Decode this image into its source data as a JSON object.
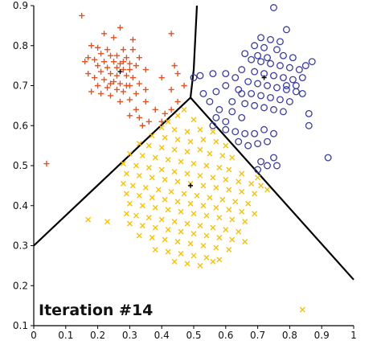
{
  "chart_data": {
    "type": "scatter",
    "title": "",
    "xlabel": "",
    "ylabel": "",
    "annotation": "Iteration #14",
    "xlim": [
      0,
      1
    ],
    "ylim": [
      0.1,
      0.9
    ],
    "xticks": [
      "0",
      "0.1",
      "0.2",
      "0.3",
      "0.4",
      "0.5",
      "0.6",
      "0.7",
      "0.8",
      "0.9",
      "1"
    ],
    "yticks": [
      "0.1",
      "0.2",
      "0.3",
      "0.4",
      "0.5",
      "0.6",
      "0.7",
      "0.8",
      "0.9"
    ],
    "grid": false,
    "legend": "none",
    "colors": {
      "red": "#e8501e",
      "blue": "#3a3d9c",
      "yellow": "#f4c20d",
      "boundary": "#000000"
    },
    "boundaries": [
      {
        "x": [
          0.49,
          0.5,
          0.51
        ],
        "y": [
          0.67,
          0.74,
          0.9
        ]
      },
      {
        "x": [
          0.49,
          0.0
        ],
        "y": [
          0.67,
          0.3
        ]
      },
      {
        "x": [
          0.49,
          1.0
        ],
        "y": [
          0.67,
          0.215
        ]
      }
    ],
    "series": [
      {
        "marker": "plus",
        "color": "red",
        "centroid": [
          0.27,
          0.735
        ],
        "points": [
          [
            0.15,
            0.875
          ],
          [
            0.27,
            0.845
          ],
          [
            0.43,
            0.83
          ],
          [
            0.22,
            0.83
          ],
          [
            0.25,
            0.82
          ],
          [
            0.31,
            0.815
          ],
          [
            0.18,
            0.8
          ],
          [
            0.2,
            0.795
          ],
          [
            0.23,
            0.79
          ],
          [
            0.28,
            0.79
          ],
          [
            0.31,
            0.79
          ],
          [
            0.21,
            0.78
          ],
          [
            0.24,
            0.775
          ],
          [
            0.26,
            0.775
          ],
          [
            0.29,
            0.77
          ],
          [
            0.17,
            0.77
          ],
          [
            0.19,
            0.765
          ],
          [
            0.22,
            0.76
          ],
          [
            0.25,
            0.76
          ],
          [
            0.27,
            0.755
          ],
          [
            0.3,
            0.755
          ],
          [
            0.32,
            0.75
          ],
          [
            0.2,
            0.75
          ],
          [
            0.23,
            0.745
          ],
          [
            0.26,
            0.745
          ],
          [
            0.28,
            0.74
          ],
          [
            0.3,
            0.74
          ],
          [
            0.21,
            0.735
          ],
          [
            0.24,
            0.73
          ],
          [
            0.26,
            0.725
          ],
          [
            0.29,
            0.725
          ],
          [
            0.31,
            0.72
          ],
          [
            0.19,
            0.72
          ],
          [
            0.22,
            0.715
          ],
          [
            0.25,
            0.71
          ],
          [
            0.27,
            0.705
          ],
          [
            0.3,
            0.7
          ],
          [
            0.33,
            0.705
          ],
          [
            0.2,
            0.7
          ],
          [
            0.23,
            0.695
          ],
          [
            0.26,
            0.69
          ],
          [
            0.28,
            0.685
          ],
          [
            0.32,
            0.68
          ],
          [
            0.18,
            0.685
          ],
          [
            0.21,
            0.68
          ],
          [
            0.24,
            0.675
          ],
          [
            0.35,
            0.69
          ],
          [
            0.4,
            0.72
          ],
          [
            0.44,
            0.75
          ],
          [
            0.45,
            0.73
          ],
          [
            0.47,
            0.7
          ],
          [
            0.43,
            0.69
          ],
          [
            0.3,
            0.665
          ],
          [
            0.27,
            0.66
          ],
          [
            0.35,
            0.66
          ],
          [
            0.38,
            0.64
          ],
          [
            0.32,
            0.64
          ],
          [
            0.41,
            0.63
          ],
          [
            0.3,
            0.625
          ],
          [
            0.33,
            0.62
          ],
          [
            0.36,
            0.61
          ],
          [
            0.34,
            0.6
          ],
          [
            0.4,
            0.61
          ],
          [
            0.43,
            0.64
          ],
          [
            0.45,
            0.66
          ],
          [
            0.29,
            0.7
          ],
          [
            0.24,
            0.705
          ],
          [
            0.17,
            0.73
          ],
          [
            0.33,
            0.77
          ],
          [
            0.35,
            0.74
          ],
          [
            0.16,
            0.76
          ],
          [
            0.28,
            0.76
          ],
          [
            0.04,
            0.505
          ]
        ]
      },
      {
        "marker": "circle",
        "color": "blue",
        "centroid": [
          0.72,
          0.72
        ],
        "points": [
          [
            0.75,
            0.895
          ],
          [
            0.79,
            0.84
          ],
          [
            0.71,
            0.82
          ],
          [
            0.74,
            0.815
          ],
          [
            0.77,
            0.81
          ],
          [
            0.69,
            0.8
          ],
          [
            0.72,
            0.795
          ],
          [
            0.76,
            0.79
          ],
          [
            0.66,
            0.78
          ],
          [
            0.7,
            0.775
          ],
          [
            0.73,
            0.77
          ],
          [
            0.78,
            0.775
          ],
          [
            0.81,
            0.77
          ],
          [
            0.68,
            0.765
          ],
          [
            0.71,
            0.76
          ],
          [
            0.74,
            0.755
          ],
          [
            0.77,
            0.75
          ],
          [
            0.8,
            0.745
          ],
          [
            0.83,
            0.74
          ],
          [
            0.65,
            0.74
          ],
          [
            0.69,
            0.735
          ],
          [
            0.72,
            0.73
          ],
          [
            0.75,
            0.725
          ],
          [
            0.78,
            0.72
          ],
          [
            0.81,
            0.715
          ],
          [
            0.84,
            0.72
          ],
          [
            0.67,
            0.71
          ],
          [
            0.7,
            0.705
          ],
          [
            0.73,
            0.7
          ],
          [
            0.76,
            0.695
          ],
          [
            0.79,
            0.69
          ],
          [
            0.82,
            0.685
          ],
          [
            0.64,
            0.69
          ],
          [
            0.68,
            0.68
          ],
          [
            0.71,
            0.675
          ],
          [
            0.74,
            0.67
          ],
          [
            0.77,
            0.665
          ],
          [
            0.8,
            0.66
          ],
          [
            0.62,
            0.66
          ],
          [
            0.66,
            0.655
          ],
          [
            0.69,
            0.65
          ],
          [
            0.72,
            0.645
          ],
          [
            0.75,
            0.64
          ],
          [
            0.78,
            0.635
          ],
          [
            0.57,
            0.685
          ],
          [
            0.6,
            0.7
          ],
          [
            0.56,
            0.73
          ],
          [
            0.52,
            0.725
          ],
          [
            0.5,
            0.72
          ],
          [
            0.53,
            0.68
          ],
          [
            0.55,
            0.66
          ],
          [
            0.58,
            0.64
          ],
          [
            0.62,
            0.635
          ],
          [
            0.65,
            0.62
          ],
          [
            0.6,
            0.61
          ],
          [
            0.57,
            0.62
          ],
          [
            0.56,
            0.6
          ],
          [
            0.6,
            0.59
          ],
          [
            0.63,
            0.585
          ],
          [
            0.66,
            0.58
          ],
          [
            0.69,
            0.58
          ],
          [
            0.72,
            0.59
          ],
          [
            0.75,
            0.58
          ],
          [
            0.73,
            0.56
          ],
          [
            0.7,
            0.555
          ],
          [
            0.67,
            0.55
          ],
          [
            0.64,
            0.56
          ],
          [
            0.75,
            0.52
          ],
          [
            0.73,
            0.5
          ],
          [
            0.71,
            0.51
          ],
          [
            0.7,
            0.49
          ],
          [
            0.76,
            0.5
          ],
          [
            0.86,
            0.6
          ],
          [
            0.92,
            0.52
          ],
          [
            0.86,
            0.63
          ],
          [
            0.84,
            0.68
          ],
          [
            0.82,
            0.7
          ],
          [
            0.85,
            0.75
          ],
          [
            0.87,
            0.76
          ],
          [
            0.79,
            0.7
          ],
          [
            0.6,
            0.73
          ],
          [
            0.63,
            0.72
          ],
          [
            0.65,
            0.68
          ]
        ]
      },
      {
        "marker": "x",
        "color": "yellow",
        "centroid": [
          0.49,
          0.45
        ],
        "points": [
          [
            0.47,
            0.64
          ],
          [
            0.45,
            0.625
          ],
          [
            0.42,
            0.61
          ],
          [
            0.5,
            0.615
          ],
          [
            0.4,
            0.595
          ],
          [
            0.44,
            0.59
          ],
          [
            0.48,
            0.585
          ],
          [
            0.52,
            0.59
          ],
          [
            0.56,
            0.585
          ],
          [
            0.37,
            0.575
          ],
          [
            0.41,
            0.57
          ],
          [
            0.45,
            0.565
          ],
          [
            0.49,
            0.56
          ],
          [
            0.53,
            0.565
          ],
          [
            0.57,
            0.56
          ],
          [
            0.6,
            0.55
          ],
          [
            0.33,
            0.555
          ],
          [
            0.36,
            0.55
          ],
          [
            0.4,
            0.545
          ],
          [
            0.44,
            0.54
          ],
          [
            0.48,
            0.535
          ],
          [
            0.52,
            0.54
          ],
          [
            0.55,
            0.53
          ],
          [
            0.59,
            0.525
          ],
          [
            0.62,
            0.52
          ],
          [
            0.3,
            0.53
          ],
          [
            0.34,
            0.525
          ],
          [
            0.38,
            0.52
          ],
          [
            0.42,
            0.515
          ],
          [
            0.46,
            0.51
          ],
          [
            0.5,
            0.505
          ],
          [
            0.54,
            0.5
          ],
          [
            0.58,
            0.495
          ],
          [
            0.61,
            0.49
          ],
          [
            0.65,
            0.48
          ],
          [
            0.28,
            0.505
          ],
          [
            0.32,
            0.5
          ],
          [
            0.36,
            0.495
          ],
          [
            0.4,
            0.49
          ],
          [
            0.44,
            0.485
          ],
          [
            0.48,
            0.48
          ],
          [
            0.52,
            0.475
          ],
          [
            0.56,
            0.47
          ],
          [
            0.6,
            0.465
          ],
          [
            0.64,
            0.46
          ],
          [
            0.68,
            0.455
          ],
          [
            0.29,
            0.48
          ],
          [
            0.33,
            0.475
          ],
          [
            0.37,
            0.47
          ],
          [
            0.41,
            0.465
          ],
          [
            0.45,
            0.46
          ],
          [
            0.49,
            0.455
          ],
          [
            0.53,
            0.45
          ],
          [
            0.57,
            0.445
          ],
          [
            0.61,
            0.44
          ],
          [
            0.65,
            0.435
          ],
          [
            0.69,
            0.43
          ],
          [
            0.28,
            0.455
          ],
          [
            0.31,
            0.45
          ],
          [
            0.35,
            0.445
          ],
          [
            0.39,
            0.44
          ],
          [
            0.43,
            0.435
          ],
          [
            0.47,
            0.43
          ],
          [
            0.51,
            0.425
          ],
          [
            0.55,
            0.42
          ],
          [
            0.59,
            0.415
          ],
          [
            0.63,
            0.41
          ],
          [
            0.67,
            0.405
          ],
          [
            0.29,
            0.43
          ],
          [
            0.33,
            0.425
          ],
          [
            0.37,
            0.42
          ],
          [
            0.41,
            0.415
          ],
          [
            0.45,
            0.41
          ],
          [
            0.49,
            0.405
          ],
          [
            0.53,
            0.4
          ],
          [
            0.57,
            0.395
          ],
          [
            0.61,
            0.39
          ],
          [
            0.65,
            0.385
          ],
          [
            0.3,
            0.405
          ],
          [
            0.34,
            0.4
          ],
          [
            0.38,
            0.395
          ],
          [
            0.42,
            0.39
          ],
          [
            0.46,
            0.385
          ],
          [
            0.5,
            0.38
          ],
          [
            0.54,
            0.375
          ],
          [
            0.58,
            0.37
          ],
          [
            0.62,
            0.365
          ],
          [
            0.66,
            0.36
          ],
          [
            0.29,
            0.38
          ],
          [
            0.32,
            0.375
          ],
          [
            0.36,
            0.37
          ],
          [
            0.4,
            0.365
          ],
          [
            0.44,
            0.36
          ],
          [
            0.48,
            0.355
          ],
          [
            0.52,
            0.35
          ],
          [
            0.56,
            0.345
          ],
          [
            0.6,
            0.34
          ],
          [
            0.64,
            0.335
          ],
          [
            0.3,
            0.355
          ],
          [
            0.34,
            0.35
          ],
          [
            0.38,
            0.345
          ],
          [
            0.42,
            0.34
          ],
          [
            0.46,
            0.335
          ],
          [
            0.5,
            0.33
          ],
          [
            0.54,
            0.325
          ],
          [
            0.58,
            0.32
          ],
          [
            0.62,
            0.315
          ],
          [
            0.66,
            0.31
          ],
          [
            0.33,
            0.325
          ],
          [
            0.37,
            0.32
          ],
          [
            0.41,
            0.315
          ],
          [
            0.45,
            0.31
          ],
          [
            0.49,
            0.305
          ],
          [
            0.53,
            0.3
          ],
          [
            0.57,
            0.295
          ],
          [
            0.61,
            0.29
          ],
          [
            0.38,
            0.29
          ],
          [
            0.42,
            0.285
          ],
          [
            0.46,
            0.28
          ],
          [
            0.5,
            0.275
          ],
          [
            0.54,
            0.27
          ],
          [
            0.58,
            0.265
          ],
          [
            0.44,
            0.26
          ],
          [
            0.48,
            0.255
          ],
          [
            0.52,
            0.25
          ],
          [
            0.56,
            0.26
          ],
          [
            0.17,
            0.365
          ],
          [
            0.23,
            0.36
          ],
          [
            0.69,
            0.38
          ],
          [
            0.71,
            0.45
          ],
          [
            0.73,
            0.44
          ],
          [
            0.7,
            0.47
          ],
          [
            0.84,
            0.14
          ]
        ]
      }
    ]
  }
}
